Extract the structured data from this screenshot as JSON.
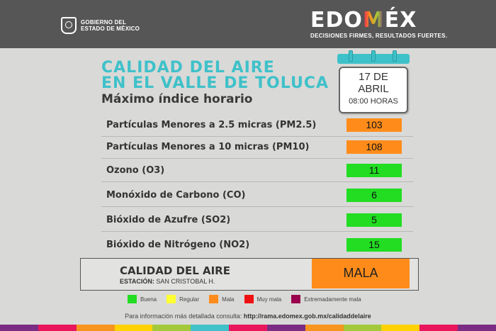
{
  "header": {
    "gov_line1": "GOBIERNO DEL",
    "gov_line2": "ESTADO DE MÉXICO",
    "brand_prefix": "EDO",
    "brand_m": "M",
    "brand_suffix": "ÉX",
    "slogan": "DECISIONES FIRMES, RESULTADOS FUERTES."
  },
  "title": {
    "line1": "CALIDAD DEL AIRE",
    "line2": "EN EL VALLE DE TOLUCA",
    "subtitle": "Máximo índice horario"
  },
  "calendar": {
    "day": "17 DE",
    "month": "ABRIL",
    "hour": "08:00 HORAS"
  },
  "pollutants": [
    {
      "label": "Partículas Menores a 2.5 micras (PM2.5)",
      "value": "103",
      "color": "#ff8c1a"
    },
    {
      "label": "Partículas Menores a 10 micras (PM10)",
      "value": "108",
      "color": "#ff8c1a"
    },
    {
      "label": "Ozono (O3)",
      "value": "11",
      "color": "#22dd22"
    },
    {
      "label": "Monóxido de Carbono (CO)",
      "value": "6",
      "color": "#22dd22"
    },
    {
      "label": "Bióxido de Azufre (SO2)",
      "value": "5",
      "color": "#22dd22"
    },
    {
      "label": "Bióxido de Nitrógeno (NO2)",
      "value": "15",
      "color": "#22dd22"
    }
  ],
  "summary": {
    "title": "CALIDAD DEL AIRE",
    "station_label": "ESTACIÓN:",
    "station_name": "SAN CRISTOBAL H.",
    "value": "MALA",
    "color": "#ff8c1a"
  },
  "legend": [
    {
      "label": "Buena",
      "color": "#22dd22"
    },
    {
      "label": "Regular",
      "color": "#ffff33"
    },
    {
      "label": "Mala",
      "color": "#ff8c1a"
    },
    {
      "label": "Muy mala",
      "color": "#ee1111"
    },
    {
      "label": "Extremadamente mala",
      "color": "#99004d"
    }
  ],
  "footer": {
    "text": "Para información más detallada consulta:",
    "url": "http://rama.edomex.gob.mx/calidaddelaire"
  },
  "stripe_colors": [
    "#7b2c83",
    "#e8175d",
    "#f7941d",
    "#ffd200",
    "#a3c93a",
    "#3fc1c9",
    "#e8175d",
    "#7b2c83",
    "#f7941d",
    "#a3c93a",
    "#ffd200",
    "#e8175d",
    "#7b2c83"
  ]
}
